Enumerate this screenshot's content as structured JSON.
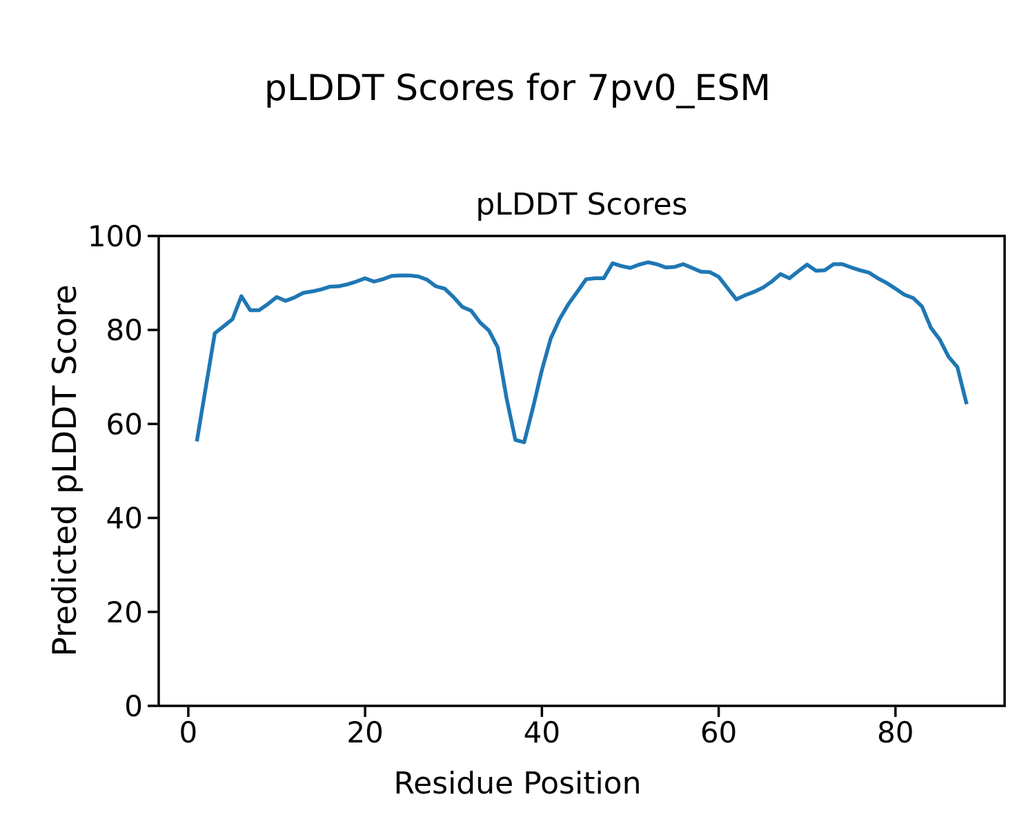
{
  "figure": {
    "suptitle": "pLDDT Scores for 7pv0_ESM",
    "background_color": "#ffffff",
    "text_color": "#000000"
  },
  "chart_data": {
    "type": "line",
    "title": "pLDDT Scores",
    "xlabel": "Residue Position",
    "ylabel": "Predicted pLDDT Score",
    "xlim": [
      -3.35,
      92.35
    ],
    "ylim": [
      0,
      100
    ],
    "xticks": [
      0,
      20,
      40,
      60,
      80
    ],
    "yticks": [
      0,
      20,
      40,
      60,
      80,
      100
    ],
    "grid": false,
    "legend_position": "none",
    "series": [
      {
        "name": "pLDDT",
        "color": "#1f77b4",
        "x": [
          1,
          2,
          3,
          4,
          5,
          6,
          7,
          8,
          9,
          10,
          11,
          12,
          13,
          14,
          15,
          16,
          17,
          18,
          19,
          20,
          21,
          22,
          23,
          24,
          25,
          26,
          27,
          28,
          29,
          30,
          31,
          32,
          33,
          34,
          35,
          36,
          37,
          38,
          39,
          40,
          41,
          42,
          43,
          44,
          45,
          46,
          47,
          48,
          49,
          50,
          51,
          52,
          53,
          54,
          55,
          56,
          57,
          58,
          59,
          60,
          61,
          62,
          63,
          64,
          65,
          66,
          67,
          68,
          69,
          70,
          71,
          72,
          73,
          74,
          75,
          76,
          77,
          78,
          79,
          80,
          81,
          82,
          83,
          84,
          85,
          86,
          87,
          88
        ],
        "values": [
          56.7,
          68.0,
          79.3,
          80.8,
          82.3,
          87.2,
          84.2,
          84.2,
          85.5,
          87.0,
          86.2,
          86.9,
          87.9,
          88.2,
          88.6,
          89.2,
          89.3,
          89.7,
          90.3,
          91.0,
          90.3,
          90.8,
          91.5,
          91.6,
          91.6,
          91.4,
          90.7,
          89.3,
          88.8,
          87.0,
          84.9,
          84.1,
          81.6,
          79.9,
          76.3,
          65.5,
          56.6,
          56.1,
          63.5,
          71.5,
          78.2,
          82.3,
          85.5,
          88.1,
          90.8,
          91.0,
          91.0,
          94.2,
          93.6,
          93.2,
          93.9,
          94.4,
          94.0,
          93.3,
          93.4,
          94.0,
          93.2,
          92.4,
          92.3,
          91.3,
          88.9,
          86.5,
          87.4,
          88.1,
          89.0,
          90.3,
          91.9,
          91.0,
          92.5,
          93.9,
          92.6,
          92.7,
          94.0,
          94.0,
          93.3,
          92.7,
          92.2,
          91.0,
          90.0,
          88.8,
          87.5,
          86.8,
          85.0,
          80.5,
          78.0,
          74.3,
          72.1,
          64.6
        ]
      }
    ]
  }
}
